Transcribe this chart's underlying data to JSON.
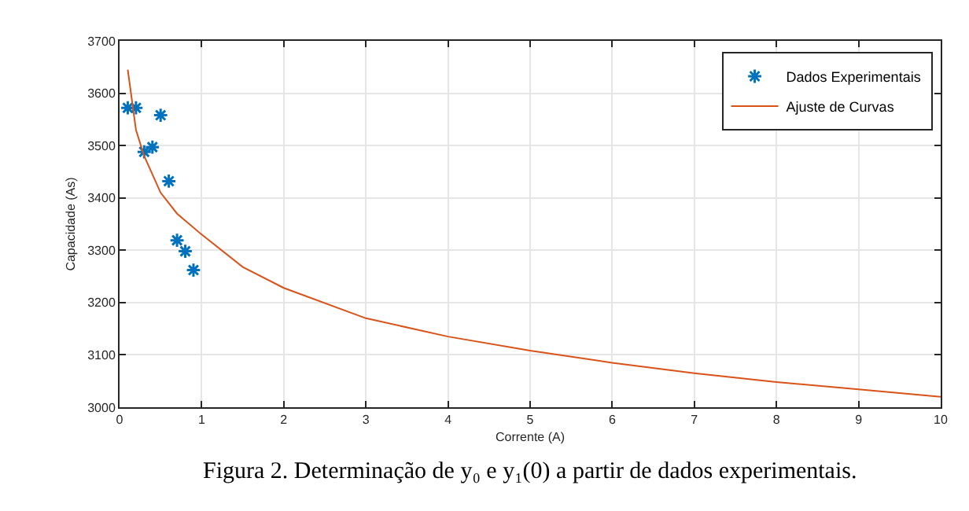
{
  "chart_data": {
    "type": "scatter",
    "xlabel": "Corrente (A)",
    "ylabel": "Capacidade (As)",
    "annotations": [
      "Figura 2. Determinação de y₀ e y₁(0) a partir de dados experimentais."
    ],
    "xlim": [
      0,
      10
    ],
    "xticks": [
      0,
      1,
      2,
      3,
      4,
      5,
      6,
      7,
      8,
      9,
      10
    ],
    "ylim": [
      3000,
      3700
    ],
    "yticks": [
      3000,
      3100,
      3200,
      3300,
      3400,
      3500,
      3600,
      3700
    ],
    "grid": true,
    "legend": "top right",
    "series": [
      {
        "name": "Dados Experimentais",
        "type": "scatter",
        "marker": "cross",
        "color": "#0072bd",
        "x": [
          0.1,
          0.2,
          0.3,
          0.4,
          0.5,
          0.6,
          0.7,
          0.8,
          0.9
        ],
        "values": [
          3572,
          3572,
          3488,
          3497,
          3558,
          3432,
          3319,
          3298,
          3262
        ]
      },
      {
        "name": "Ajuste de Curvas",
        "type": "line",
        "marker": "none",
        "line_style": "solid",
        "color": "#d95319",
        "x": [
          0.1,
          0.2,
          0.3,
          0.5,
          0.7,
          1,
          1.5,
          2,
          3,
          4,
          5,
          6,
          7,
          8,
          9,
          10
        ],
        "values": [
          3645,
          3530,
          3480,
          3410,
          3370,
          3330,
          3268,
          3228,
          3170,
          3135,
          3108,
          3085,
          3065,
          3048,
          3034,
          3020
        ]
      }
    ]
  }
}
